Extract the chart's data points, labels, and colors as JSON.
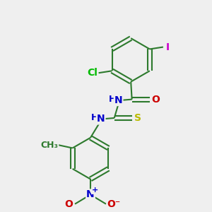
{
  "background_color": "#efefef",
  "bond_color": "#2d7a2d",
  "atom_colors": {
    "Cl": "#00bb00",
    "I": "#cc00cc",
    "N": "#0000cc",
    "O": "#cc0000",
    "S": "#bbbb00",
    "H": "#555555",
    "C": "#2d7a2d"
  },
  "font_size": 10,
  "bond_width": 1.5,
  "figsize": [
    3.0,
    3.0
  ],
  "dpi": 100,
  "xlim": [
    0,
    10
  ],
  "ylim": [
    0,
    10
  ]
}
